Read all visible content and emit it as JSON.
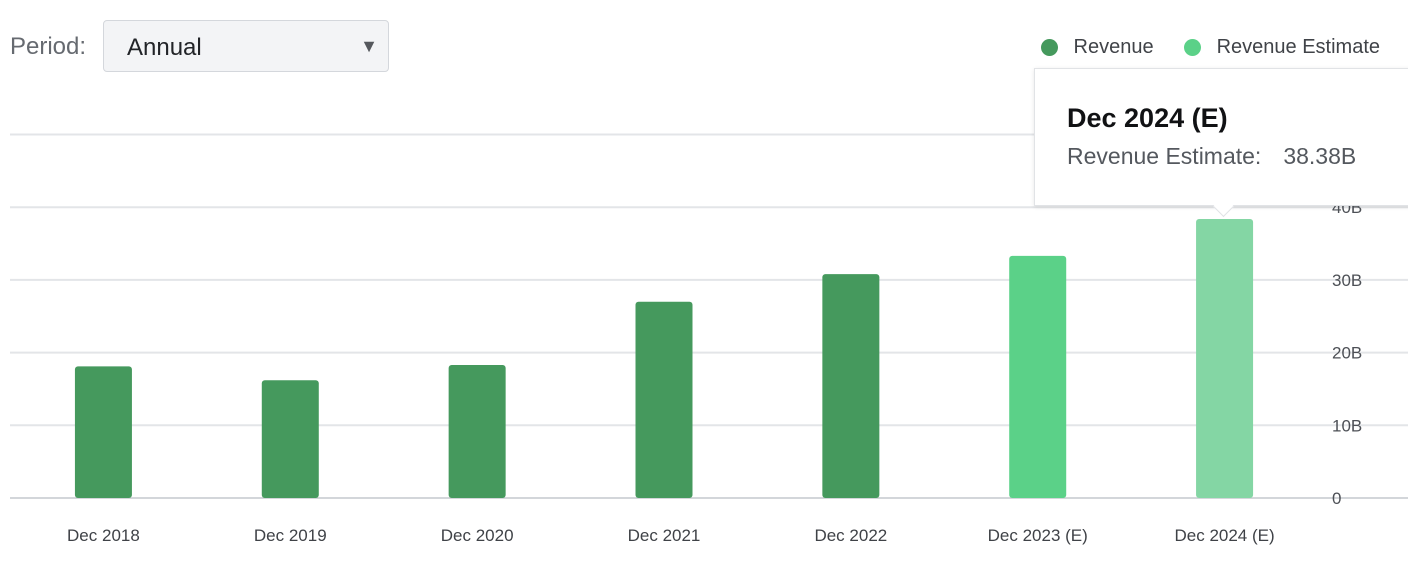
{
  "controls": {
    "period_label": "Period:",
    "period_value": "Annual",
    "caret_icon": "triangle-down-icon"
  },
  "legend": {
    "items": [
      {
        "label": "Revenue",
        "color": "#45995d"
      },
      {
        "label": "Revenue Estimate",
        "color": "#5bd188"
      }
    ]
  },
  "tooltip": {
    "title": "Dec 2024 (E)",
    "label": "Revenue Estimate:",
    "value": "38.38B"
  },
  "chart_data": {
    "type": "bar",
    "categories": [
      "Dec 2018",
      "Dec 2019",
      "Dec 2020",
      "Dec 2021",
      "Dec 2022",
      "Dec 2023 (E)",
      "Dec 2024 (E)"
    ],
    "series": [
      {
        "name": "Revenue",
        "values": [
          18.1,
          16.2,
          18.3,
          27.0,
          30.8,
          null,
          null
        ],
        "color": "#45995d"
      },
      {
        "name": "Revenue Estimate",
        "values": [
          null,
          null,
          null,
          null,
          null,
          33.3,
          38.38
        ],
        "color": "#5bd188",
        "highlight_color": "#84d6a4"
      }
    ],
    "highlighted_category": "Dec 2024 (E)",
    "ylim": [
      0,
      50
    ],
    "yticks": [
      0,
      10,
      20,
      30,
      40
    ],
    "ytick_labels": [
      "0",
      "10B",
      "20B",
      "30B",
      "40B"
    ],
    "grid": true,
    "legend_position": "top-right"
  }
}
